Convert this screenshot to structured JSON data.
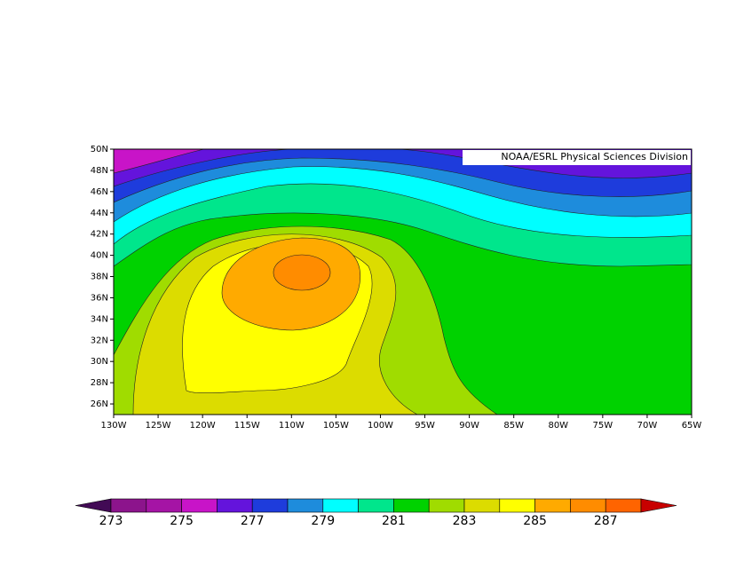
{
  "chart_data": {
    "type": "contour_map",
    "credit": "NOAA/ESRL Physical Sciences Division",
    "xlim": [
      -130,
      -65
    ],
    "ylim": [
      25,
      50
    ],
    "xticks": [
      {
        "value": -130,
        "label": "130W"
      },
      {
        "value": -125,
        "label": "125W"
      },
      {
        "value": -120,
        "label": "120W"
      },
      {
        "value": -115,
        "label": "115W"
      },
      {
        "value": -110,
        "label": "110W"
      },
      {
        "value": -105,
        "label": "105W"
      },
      {
        "value": -100,
        "label": "100W"
      },
      {
        "value": -95,
        "label": "95W"
      },
      {
        "value": -90,
        "label": "90W"
      },
      {
        "value": -85,
        "label": "85W"
      },
      {
        "value": -80,
        "label": "80W"
      },
      {
        "value": -75,
        "label": "75W"
      },
      {
        "value": -70,
        "label": "70W"
      },
      {
        "value": -65,
        "label": "65W"
      }
    ],
    "yticks": [
      {
        "value": 26,
        "label": "26N"
      },
      {
        "value": 28,
        "label": "28N"
      },
      {
        "value": 30,
        "label": "30N"
      },
      {
        "value": 32,
        "label": "32N"
      },
      {
        "value": 34,
        "label": "34N"
      },
      {
        "value": 36,
        "label": "36N"
      },
      {
        "value": 38,
        "label": "38N"
      },
      {
        "value": 40,
        "label": "40N"
      },
      {
        "value": 42,
        "label": "42N"
      },
      {
        "value": 44,
        "label": "44N"
      },
      {
        "value": 46,
        "label": "46N"
      },
      {
        "value": 48,
        "label": "48N"
      },
      {
        "value": 50,
        "label": "50N"
      }
    ],
    "colorbar": {
      "levels": [
        273,
        274,
        275,
        276,
        277,
        278,
        279,
        280,
        281,
        282,
        283,
        284,
        285,
        286,
        287,
        288
      ],
      "colors": [
        "#420a55",
        "#8c148c",
        "#a514a5",
        "#c814c8",
        "#6414dc",
        "#1e3cdc",
        "#1e8cdc",
        "#00ffff",
        "#00e68c",
        "#00d200",
        "#a0dc00",
        "#dcdc00",
        "#ffff00",
        "#ffaa00",
        "#ff8c00",
        "#ff6400",
        "#c80000"
      ],
      "ticks": [
        273,
        275,
        277,
        279,
        281,
        283,
        285,
        287
      ]
    }
  }
}
